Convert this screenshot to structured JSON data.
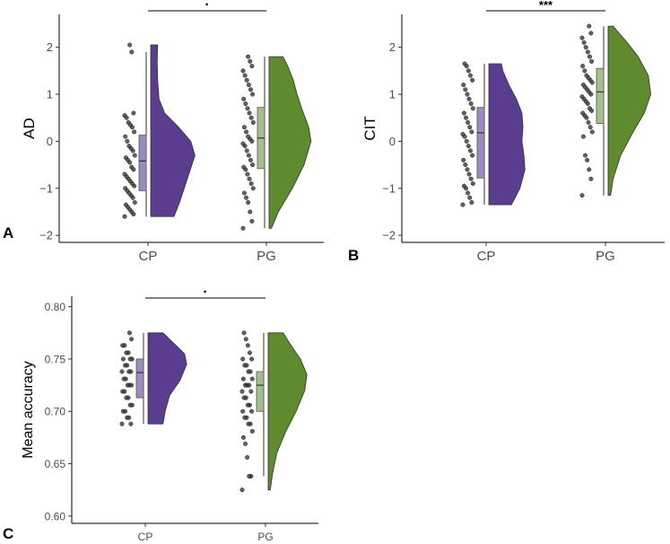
{
  "colors": {
    "CP": "#5b3d8f",
    "PG": "#5f8a2e",
    "CP_box": "#9b8cc0",
    "PG_box": "#a3bf8a",
    "point": "#333333"
  },
  "chart_data": [
    {
      "panel_label": "A",
      "type": "raincloud",
      "ylabel": "AD",
      "categories": [
        "CP",
        "PG"
      ],
      "ylim": [
        -2.15,
        2.7
      ],
      "yticks": [
        -2,
        -1,
        0,
        1,
        2
      ],
      "ytick_labels": [
        "−2",
        "−1",
        "0",
        "1",
        "2"
      ],
      "significance": "·",
      "groups": [
        {
          "name": "CP",
          "box": {
            "q1": -1.05,
            "median": -0.42,
            "q3": 0.13,
            "whisker_low": -1.6,
            "whisker_high": 1.9
          },
          "density": [
            [
              -1.6,
              0.5
            ],
            [
              -1.3,
              0.62
            ],
            [
              -1.0,
              0.72
            ],
            [
              -0.6,
              0.85
            ],
            [
              -0.3,
              0.95
            ],
            [
              0.0,
              0.86
            ],
            [
              0.3,
              0.6
            ],
            [
              0.6,
              0.3
            ],
            [
              0.9,
              0.18
            ],
            [
              1.3,
              0.15
            ],
            [
              1.7,
              0.14
            ],
            [
              2.05,
              0.15
            ]
          ],
          "points": [
            -1.6,
            -1.55,
            -1.5,
            -1.45,
            -1.4,
            -1.35,
            -1.3,
            -1.2,
            -1.15,
            -1.1,
            -1.05,
            -1.0,
            -0.95,
            -0.9,
            -0.85,
            -0.8,
            -0.75,
            -0.7,
            -0.6,
            -0.55,
            -0.45,
            -0.4,
            -0.35,
            -0.3,
            -0.2,
            -0.15,
            -0.1,
            0.0,
            0.1,
            0.2,
            0.3,
            0.35,
            0.4,
            0.5,
            0.55,
            0.6,
            1.9,
            2.05
          ]
        },
        {
          "name": "PG",
          "box": {
            "q1": -0.58,
            "median": 0.07,
            "q3": 0.72,
            "whisker_low": -1.85,
            "whisker_high": 1.8
          },
          "density": [
            [
              -1.85,
              0.05
            ],
            [
              -1.5,
              0.2
            ],
            [
              -1.0,
              0.5
            ],
            [
              -0.5,
              0.75
            ],
            [
              0.0,
              0.9
            ],
            [
              0.3,
              0.85
            ],
            [
              0.7,
              0.7
            ],
            [
              1.0,
              0.6
            ],
            [
              1.3,
              0.52
            ],
            [
              1.6,
              0.4
            ],
            [
              1.8,
              0.3
            ]
          ],
          "points": [
            -1.85,
            -1.7,
            -1.5,
            -1.3,
            -1.2,
            -1.1,
            -1.0,
            -0.9,
            -0.8,
            -0.7,
            -0.6,
            -0.55,
            -0.5,
            -0.4,
            -0.3,
            -0.2,
            -0.1,
            -0.05,
            0.0,
            0.05,
            0.1,
            0.2,
            0.3,
            0.4,
            0.5,
            0.6,
            0.7,
            0.8,
            0.9,
            1.0,
            1.1,
            1.2,
            1.3,
            1.4,
            1.5,
            1.6,
            1.7,
            1.8
          ]
        }
      ]
    },
    {
      "panel_label": "B",
      "type": "raincloud",
      "ylabel": "CIT",
      "categories": [
        "CP",
        "PG"
      ],
      "ylim": [
        -2.15,
        2.7
      ],
      "yticks": [
        -2,
        -1,
        0,
        1,
        2
      ],
      "ytick_labels": [
        "−2",
        "−1",
        "0",
        "1",
        "2"
      ],
      "significance": "***",
      "groups": [
        {
          "name": "CP",
          "box": {
            "q1": -0.78,
            "median": 0.18,
            "q3": 0.72,
            "whisker_low": -1.35,
            "whisker_high": 1.65
          },
          "density": [
            [
              -1.35,
              0.45
            ],
            [
              -1.0,
              0.62
            ],
            [
              -0.6,
              0.72
            ],
            [
              -0.3,
              0.7
            ],
            [
              0.0,
              0.66
            ],
            [
              0.3,
              0.68
            ],
            [
              0.6,
              0.66
            ],
            [
              0.9,
              0.55
            ],
            [
              1.2,
              0.4
            ],
            [
              1.5,
              0.28
            ],
            [
              1.65,
              0.25
            ]
          ],
          "points": [
            -1.35,
            -1.3,
            -1.2,
            -1.1,
            -1.0,
            -0.95,
            -0.9,
            -0.8,
            -0.7,
            -0.6,
            -0.5,
            -0.4,
            -0.3,
            -0.2,
            -0.1,
            0.0,
            0.1,
            0.15,
            0.2,
            0.3,
            0.4,
            0.5,
            0.6,
            0.7,
            0.8,
            0.9,
            1.0,
            1.1,
            1.2,
            1.3,
            1.4,
            1.5,
            1.6,
            1.65
          ]
        },
        {
          "name": "PG",
          "box": {
            "q1": 0.38,
            "median": 1.05,
            "q3": 1.55,
            "whisker_low": -1.15,
            "whisker_high": 2.45
          },
          "density": [
            [
              -1.15,
              0.05
            ],
            [
              -0.8,
              0.1
            ],
            [
              -0.3,
              0.25
            ],
            [
              0.2,
              0.5
            ],
            [
              0.6,
              0.72
            ],
            [
              1.0,
              0.85
            ],
            [
              1.4,
              0.8
            ],
            [
              1.8,
              0.6
            ],
            [
              2.1,
              0.38
            ],
            [
              2.3,
              0.22
            ],
            [
              2.45,
              0.1
            ]
          ],
          "points": [
            -1.15,
            -0.8,
            -0.6,
            -0.4,
            -0.3,
            0.1,
            0.2,
            0.3,
            0.4,
            0.5,
            0.55,
            0.6,
            0.65,
            0.7,
            0.8,
            0.85,
            0.9,
            0.95,
            1.0,
            1.05,
            1.1,
            1.15,
            1.2,
            1.25,
            1.3,
            1.35,
            1.4,
            1.5,
            1.6,
            1.7,
            1.8,
            1.9,
            2.0,
            2.1,
            2.2,
            2.3,
            2.45
          ]
        }
      ]
    },
    {
      "panel_label": "C",
      "type": "raincloud",
      "ylabel": "Mean accuracy",
      "categories": [
        "CP",
        "PG"
      ],
      "ylim": [
        0.593,
        0.81
      ],
      "yticks": [
        0.6,
        0.65,
        0.7,
        0.75,
        0.8
      ],
      "ytick_labels": [
        "0.60",
        "0.65",
        "0.70",
        "0.75",
        "0.80"
      ],
      "significance": "·",
      "groups": [
        {
          "name": "CP",
          "box": {
            "q1": 0.713,
            "median": 0.737,
            "q3": 0.75,
            "whisker_low": 0.688,
            "whisker_high": 0.775
          },
          "density": [
            [
              0.688,
              0.35
            ],
            [
              0.7,
              0.4
            ],
            [
              0.715,
              0.5
            ],
            [
              0.73,
              0.75
            ],
            [
              0.745,
              0.9
            ],
            [
              0.755,
              0.85
            ],
            [
              0.765,
              0.6
            ],
            [
              0.775,
              0.35
            ]
          ],
          "points": [
            0.688,
            0.688,
            0.694,
            0.694,
            0.7,
            0.7,
            0.706,
            0.706,
            0.713,
            0.713,
            0.719,
            0.719,
            0.725,
            0.725,
            0.725,
            0.731,
            0.731,
            0.738,
            0.738,
            0.738,
            0.744,
            0.744,
            0.75,
            0.75,
            0.75,
            0.756,
            0.756,
            0.763,
            0.763,
            0.769,
            0.775
          ]
        },
        {
          "name": "PG",
          "box": {
            "q1": 0.7,
            "median": 0.725,
            "q3": 0.738,
            "whisker_low": 0.638,
            "whisker_high": 0.775
          },
          "density": [
            [
              0.625,
              0.05
            ],
            [
              0.64,
              0.1
            ],
            [
              0.66,
              0.2
            ],
            [
              0.68,
              0.4
            ],
            [
              0.7,
              0.65
            ],
            [
              0.72,
              0.85
            ],
            [
              0.735,
              0.9
            ],
            [
              0.75,
              0.75
            ],
            [
              0.765,
              0.5
            ],
            [
              0.775,
              0.35
            ]
          ],
          "points": [
            0.625,
            0.638,
            0.638,
            0.656,
            0.669,
            0.675,
            0.681,
            0.688,
            0.688,
            0.694,
            0.694,
            0.7,
            0.7,
            0.706,
            0.706,
            0.713,
            0.713,
            0.719,
            0.719,
            0.725,
            0.725,
            0.725,
            0.731,
            0.731,
            0.738,
            0.738,
            0.744,
            0.744,
            0.75,
            0.75,
            0.756,
            0.763,
            0.769,
            0.775
          ]
        }
      ]
    }
  ]
}
